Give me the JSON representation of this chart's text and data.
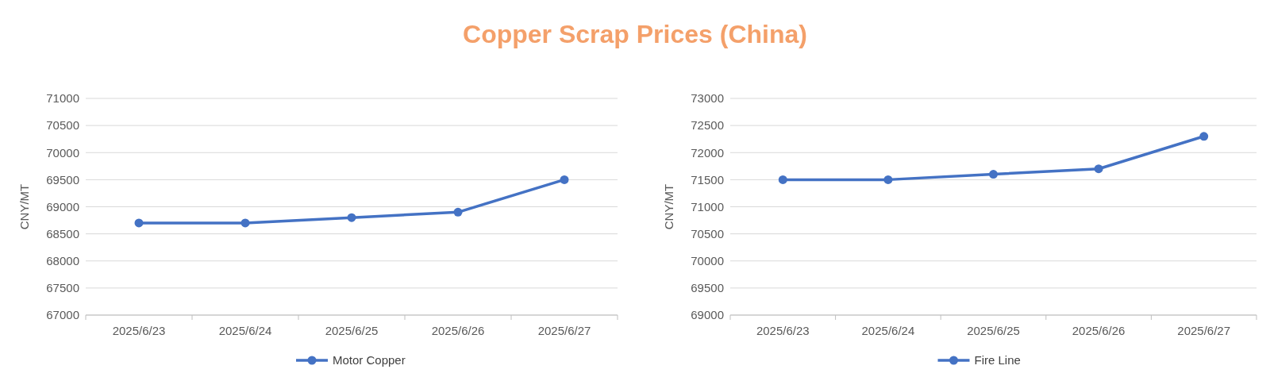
{
  "chart_data": [
    {
      "type": "line",
      "title": "Copper Scrap Prices (China)",
      "ylabel": "CNY/MT",
      "categories": [
        "2025/6/23",
        "2025/6/24",
        "2025/6/25",
        "2025/6/26",
        "2025/6/27"
      ],
      "series": [
        {
          "name": "Motor Copper",
          "color": "#4472c4",
          "values": [
            68700,
            68700,
            68800,
            68900,
            69500
          ]
        }
      ],
      "ylim": [
        67000,
        71000
      ],
      "yticks": [
        67000,
        67500,
        68000,
        68500,
        69000,
        69500,
        70000,
        70500,
        71000
      ],
      "grid": "y",
      "legend": "bottom",
      "marker": "circle"
    },
    {
      "type": "line",
      "ylabel": "CNY/MT",
      "categories": [
        "2025/6/23",
        "2025/6/24",
        "2025/6/25",
        "2025/6/26",
        "2025/6/27"
      ],
      "series": [
        {
          "name": "Fire Line",
          "color": "#4472c4",
          "values": [
            71500,
            71500,
            71600,
            71700,
            72300
          ]
        }
      ],
      "ylim": [
        69000,
        73000
      ],
      "yticks": [
        69000,
        69500,
        70000,
        70500,
        71000,
        71500,
        72000,
        72500,
        73000
      ],
      "grid": "y",
      "legend": "bottom",
      "marker": "circle"
    }
  ]
}
